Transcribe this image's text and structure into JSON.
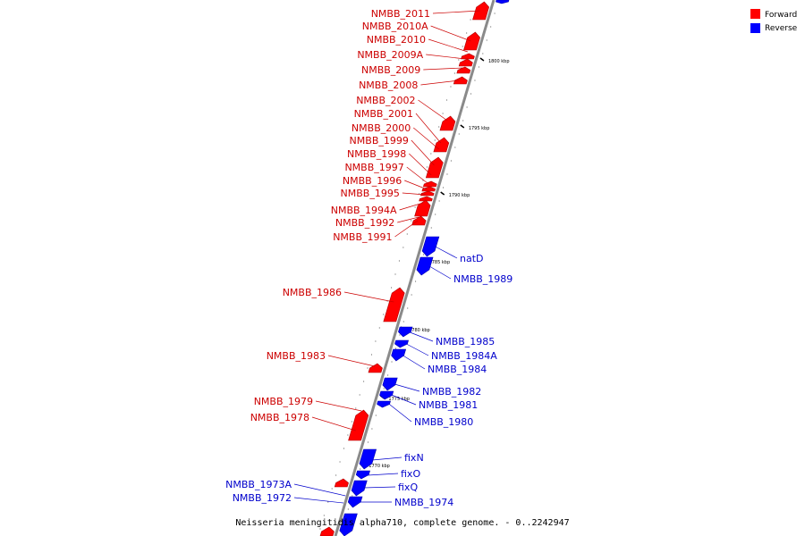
{
  "colors": {
    "forward": "#ff0000",
    "reverse": "#0000ff",
    "backbone": "#8a8a8a",
    "text_forward": "#cc0000",
    "text_reverse": "#0000cc"
  },
  "legend": {
    "forward": "Forward",
    "reverse": "Reverse"
  },
  "caption": "Neisseria meningitidis alpha710, complete genome. - 0..2242947",
  "ticks": [
    {
      "label": "1800 kbp",
      "kbp": 1800
    },
    {
      "label": "1795 kbp",
      "kbp": 1795
    },
    {
      "label": "1790 kbp",
      "kbp": 1790
    },
    {
      "label": "1785 kbp",
      "kbp": 1785
    },
    {
      "label": "1780 kbp",
      "kbp": 1780
    },
    {
      "label": "1775 kbp",
      "kbp": 1775
    },
    {
      "label": "1770 kbp",
      "kbp": 1770
    }
  ],
  "forward_labels": [
    "NMBB_2011",
    "NMBB_2010A",
    "NMBB_2010",
    "NMBB_2009A",
    "NMBB_2009",
    "NMBB_2008",
    "NMBB_2002",
    "NMBB_2001",
    "NMBB_2000",
    "NMBB_1999",
    "NMBB_1998",
    "NMBB_1997",
    "NMBB_1996",
    "NMBB_1995",
    "NMBB_1994A",
    "NMBB_1992",
    "NMBB_1991",
    "NMBB_1986",
    "NMBB_1983",
    "NMBB_1979",
    "NMBB_1978",
    "NMBB_1973A",
    "NMBB_1972"
  ],
  "reverse_labels": [
    "natD",
    "NMBB_1989",
    "NMBB_1985",
    "NMBB_1984A",
    "NMBB_1984",
    "NMBB_1982",
    "NMBB_1981",
    "NMBB_1980",
    "fixN",
    "fixO",
    "fixQ",
    "NMBB_1974"
  ]
}
